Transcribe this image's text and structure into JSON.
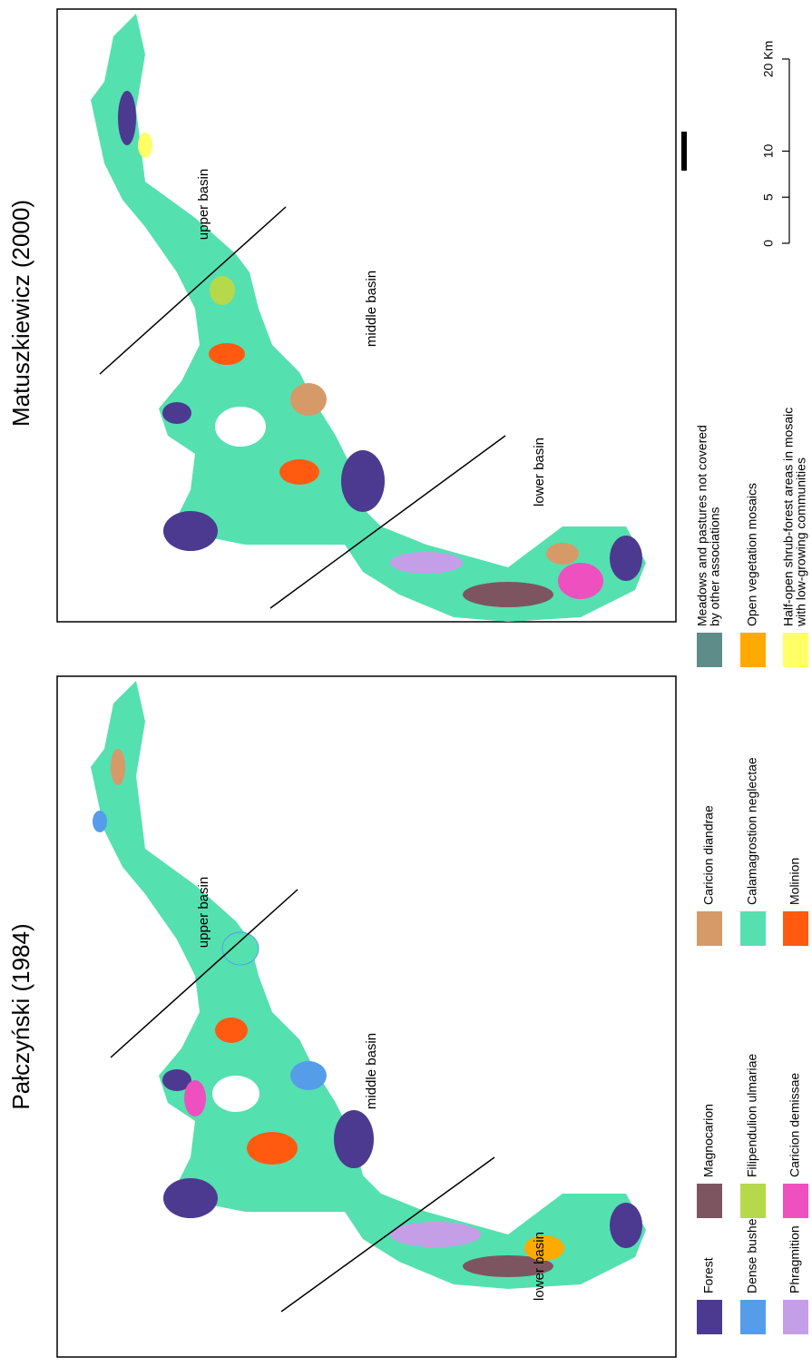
{
  "panels": [
    {
      "title": "Pałczyński (1984)",
      "regions": [
        "upper basin",
        "middle basin",
        "lower basin"
      ]
    },
    {
      "title": "Matuszkiewicz (2000)",
      "regions": [
        "upper basin",
        "middle basin",
        "lower basin"
      ]
    }
  ],
  "legend": [
    {
      "label": [
        "Forest"
      ],
      "color": "#4b3a8f"
    },
    {
      "label": [
        "Dense bushes"
      ],
      "color": "#559de8"
    },
    {
      "label": [
        "Phragmition"
      ],
      "color": "#c59ee8"
    },
    {
      "label": [
        "Magnocarion"
      ],
      "color": "#7d5560"
    },
    {
      "label": [
        "Filipendulion ulmariae"
      ],
      "color": "#b5d94a"
    },
    {
      "label": [
        "Caricion demissae"
      ],
      "color": "#ee50c0"
    },
    {
      "label": [
        "Caricion diandrae"
      ],
      "color": "#d59a68"
    },
    {
      "label": [
        "Calamagrostion neglectae"
      ],
      "color": "#55e0b0"
    },
    {
      "label": [
        "Molinion"
      ],
      "color": "#ff5a10"
    },
    {
      "label": [
        "Meadows and pastures not covered",
        "by other associations"
      ],
      "color": "#5e8c88"
    },
    {
      "label": [
        "Open vegetation mosaics"
      ],
      "color": "#ffaa00"
    },
    {
      "label": [
        "Half-open shrub-forest areas in mosaic",
        "with low-growing communities"
      ],
      "color": "#ffff66"
    }
  ],
  "scale_bar": {
    "range": [
      0,
      20
    ],
    "ticks": [
      0,
      5,
      10,
      {
        "value": 20,
        "label": "20 Km"
      }
    ]
  }
}
